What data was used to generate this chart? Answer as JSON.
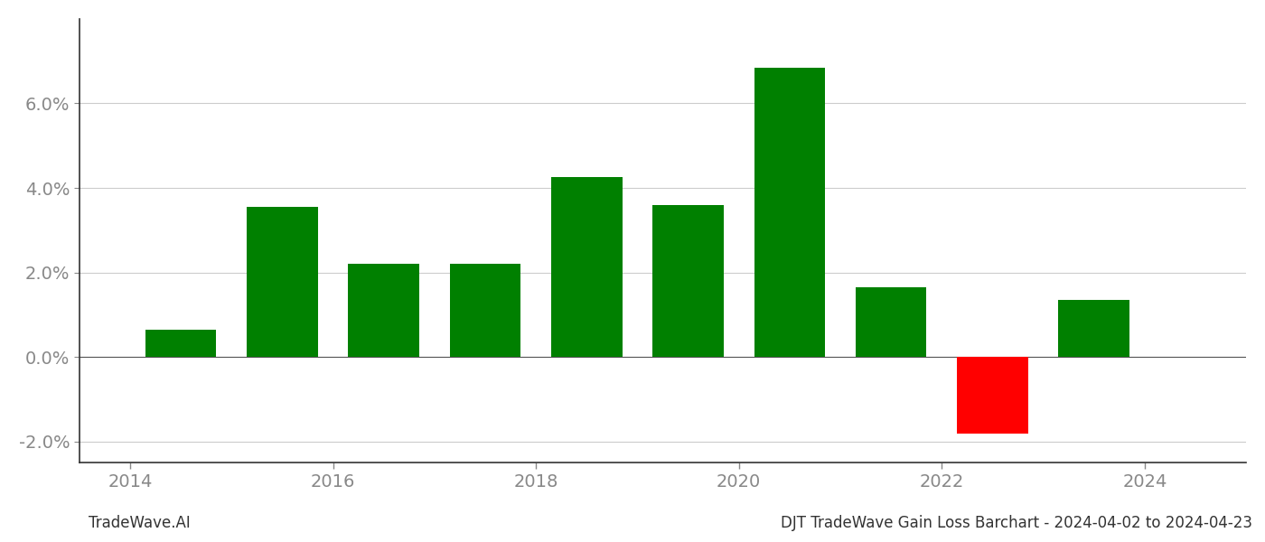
{
  "years": [
    2014,
    2015,
    2016,
    2017,
    2018,
    2019,
    2020,
    2021,
    2022,
    2023
  ],
  "values": [
    0.0065,
    0.0355,
    0.022,
    0.022,
    0.0425,
    0.036,
    0.0685,
    0.0165,
    -0.018,
    0.0135
  ],
  "colors": [
    "#008000",
    "#008000",
    "#008000",
    "#008000",
    "#008000",
    "#008000",
    "#008000",
    "#008000",
    "#ff0000",
    "#008000"
  ],
  "title": "DJT TradeWave Gain Loss Barchart - 2024-04-02 to 2024-04-23",
  "watermark": "TradeWave.AI",
  "ylim": [
    -0.025,
    0.08
  ],
  "yticks": [
    -0.02,
    0.0,
    0.02,
    0.04,
    0.06
  ],
  "xtick_labels": [
    "2014",
    "2016",
    "2018",
    "2020",
    "2022",
    "2024"
  ],
  "xtick_positions": [
    2013.5,
    2015.5,
    2017.5,
    2019.5,
    2021.5,
    2023.5
  ],
  "xlim": [
    2013.0,
    2024.5
  ],
  "bar_width": 0.7,
  "background_color": "#ffffff",
  "grid_color": "#cccccc",
  "title_fontsize": 12,
  "watermark_fontsize": 12,
  "tick_fontsize": 14
}
